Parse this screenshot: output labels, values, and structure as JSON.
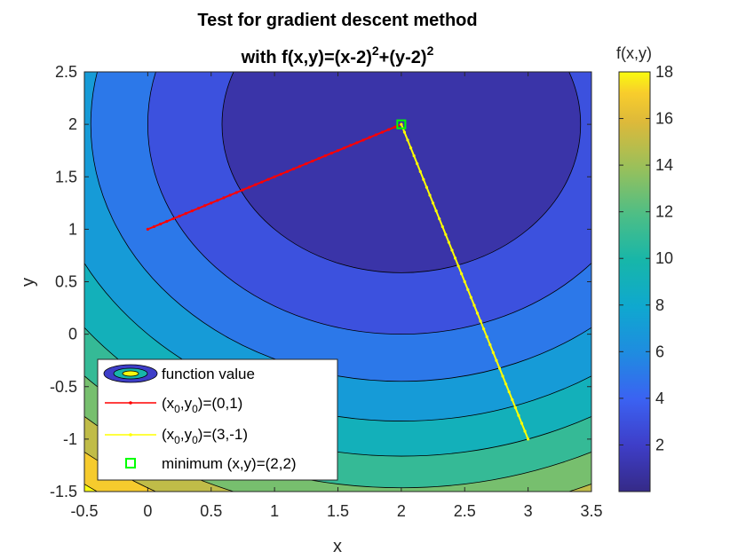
{
  "chart_data": {
    "type": "contour",
    "title": {
      "line1": "Test for gradient descent method",
      "line2_prefix": "with f(x,y)=(x-2)",
      "line2_mid": "+(y-2)",
      "exponent": "2"
    },
    "function": "(x-2)^2+(y-2)^2",
    "xlabel": "x",
    "ylabel": "y",
    "xlim": [
      -0.5,
      3.5
    ],
    "ylim": [
      -1.5,
      2.5
    ],
    "xticks": [
      "-0.5",
      "0",
      "0.5",
      "1",
      "1.5",
      "2",
      "2.5",
      "3",
      "3.5"
    ],
    "yticks": [
      "-1.5",
      "-1",
      "-0.5",
      "0",
      "0.5",
      "1",
      "1.5",
      "2",
      "2.5"
    ],
    "contour_levels": [
      0,
      2,
      4,
      6,
      8,
      10,
      12,
      14,
      16,
      18
    ],
    "colormap": "parula",
    "colorbar": {
      "label": "f(x,y)",
      "range": [
        0,
        18
      ],
      "ticks": [
        "2",
        "4",
        "6",
        "8",
        "10",
        "12",
        "14",
        "16",
        "18"
      ]
    },
    "series": [
      {
        "name": "function value",
        "kind": "filled-contour"
      },
      {
        "name_main": "(x",
        "sub1": "0",
        "name_mid": ",y",
        "sub2": "0",
        "name_end": ")=(0,1)",
        "color": "#ff0000",
        "start": [
          0,
          1
        ],
        "end": [
          2,
          2
        ]
      },
      {
        "name_main": "(x",
        "sub1": "0",
        "name_mid": ",y",
        "sub2": "0",
        "name_end": ")=(3,-1)",
        "color": "#ffff00",
        "start": [
          3,
          -1
        ],
        "end": [
          2,
          2
        ]
      },
      {
        "name": "minimum (x,y)=(2,2)",
        "color": "#00ff00",
        "marker": "square",
        "point": [
          2,
          2
        ]
      }
    ],
    "legend": {
      "position": "lower-left"
    }
  }
}
